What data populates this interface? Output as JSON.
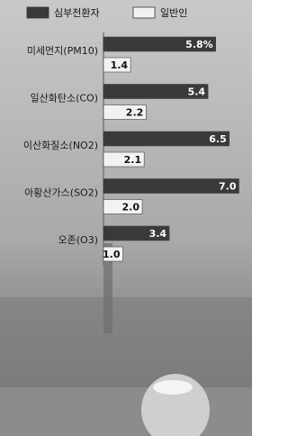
{
  "chart_data": {
    "type": "hbar",
    "categories": [
      "미세먼지(PM10)",
      "일산화탄소(CO)",
      "이산화질소(NO2)",
      "아황산가스(SO2)",
      "오존(O3)"
    ],
    "series": [
      {
        "name": "심부전환자",
        "color": "#3a3a3a",
        "values": [
          5.8,
          5.4,
          6.5,
          7.0,
          3.4
        ],
        "value_labels": [
          "5.8%",
          "5.4",
          "6.5",
          "7.0",
          "3.4"
        ]
      },
      {
        "name": "일반인",
        "color": "#f2f2f2",
        "values": [
          1.4,
          2.2,
          2.1,
          2.0,
          1.0
        ],
        "value_labels": [
          "1.4",
          "2.2",
          "2.1",
          "2.0",
          "1.0"
        ]
      }
    ],
    "legend": "top"
  }
}
